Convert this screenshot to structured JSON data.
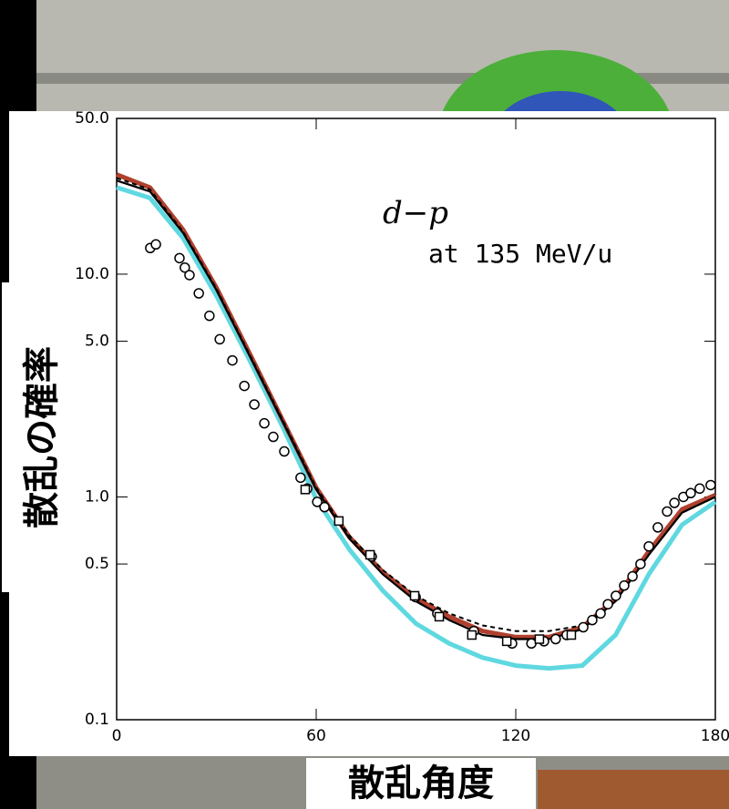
{
  "chart_data": {
    "type": "scatter",
    "annotation": [
      "d−p",
      "at 135 MeV/u"
    ],
    "xlabel": "散乱角度",
    "ylabel": "散乱の確率",
    "xlim": [
      0,
      180
    ],
    "ylim": [
      0.1,
      50
    ],
    "log_y": true,
    "xticks": [
      0,
      60,
      120,
      180
    ],
    "yticks": [
      0.1,
      0.5,
      {
        "value": 1,
        "label": "1.0"
      },
      {
        "value": 5,
        "label": "5.0"
      },
      {
        "value": 10,
        "label": "10.0"
      },
      {
        "value": 50,
        "label": "50.0"
      }
    ],
    "series": [
      {
        "style": "band",
        "color": "#5fd8e0",
        "x": [
          0,
          10,
          20,
          30,
          40,
          50,
          60,
          70,
          80,
          90,
          100,
          110,
          120,
          130,
          140,
          150,
          160,
          170,
          180
        ],
        "values": [
          24.5,
          22,
          14.5,
          8.0,
          4.1,
          2.05,
          0.98,
          0.58,
          0.38,
          0.27,
          0.22,
          0.19,
          0.175,
          0.17,
          0.175,
          0.24,
          0.45,
          0.75,
          0.95
        ]
      },
      {
        "style": "band",
        "color": "#b0402e",
        "x": [
          0,
          10,
          20,
          30,
          40,
          50,
          60,
          70,
          80,
          90,
          100,
          110,
          120,
          130,
          140,
          150,
          160,
          170,
          180
        ],
        "values": [
          28,
          24.5,
          15.8,
          8.7,
          4.4,
          2.2,
          1.1,
          0.66,
          0.46,
          0.35,
          0.29,
          0.25,
          0.235,
          0.235,
          0.26,
          0.35,
          0.57,
          0.88,
          1.02
        ]
      },
      {
        "style": "line",
        "color": "#000000",
        "x": [
          0,
          10,
          20,
          30,
          40,
          50,
          60,
          70,
          80,
          90,
          100,
          110,
          120,
          130,
          140,
          150,
          160,
          170,
          180
        ],
        "values": [
          26.3,
          23.5,
          15.3,
          8.5,
          4.3,
          2.17,
          1.08,
          0.65,
          0.45,
          0.34,
          0.28,
          0.24,
          0.23,
          0.23,
          0.255,
          0.34,
          0.55,
          0.85,
          1.0
        ]
      },
      {
        "style": "dashed",
        "color": "#000000",
        "x": [
          0,
          10,
          20,
          30,
          40,
          50,
          60,
          70,
          80,
          90,
          100,
          110,
          120,
          130,
          140,
          150,
          160,
          170,
          180
        ],
        "values": [
          27,
          24,
          15.5,
          8.6,
          4.35,
          2.2,
          1.1,
          0.67,
          0.47,
          0.36,
          0.3,
          0.265,
          0.25,
          0.25,
          0.265,
          0.34,
          0.55,
          0.85,
          1.0
        ]
      },
      {
        "style": "circle",
        "color": "#000000",
        "x": [
          10.1,
          11.8,
          18.9,
          20.5,
          21.9,
          24.7,
          27.9,
          31,
          34.8,
          38.4,
          41.4,
          44.4,
          47.1,
          50.4,
          55.3,
          57.3,
          60.3,
          62.5,
          76.7,
          89.9,
          96.4,
          107.4,
          118.9,
          124.7,
          128.5,
          132,
          135.3,
          140.3,
          143,
          145.5,
          147.7,
          150.1,
          152.6,
          155.1,
          157.5,
          160,
          162.7,
          165.5,
          167.7,
          170.4,
          172.6,
          175.3,
          178.6
        ],
        "values": [
          13.1,
          13.6,
          11.8,
          10.7,
          9.9,
          8.2,
          6.5,
          5.1,
          4.1,
          3.15,
          2.6,
          2.14,
          1.86,
          1.6,
          1.22,
          1.09,
          0.95,
          0.9,
          0.54,
          0.355,
          0.3,
          0.25,
          0.22,
          0.22,
          0.225,
          0.23,
          0.24,
          0.26,
          0.28,
          0.3,
          0.33,
          0.36,
          0.4,
          0.44,
          0.5,
          0.6,
          0.73,
          0.86,
          0.94,
          1.0,
          1.04,
          1.09,
          1.13
        ]
      },
      {
        "style": "square",
        "color": "#000000",
        "x": [
          56.7,
          66.8,
          76.2,
          89.6,
          97,
          106.8,
          117.3,
          127.1,
          136.7
        ],
        "values": [
          1.08,
          0.78,
          0.55,
          0.36,
          0.29,
          0.24,
          0.225,
          0.23,
          0.24
        ]
      }
    ]
  }
}
